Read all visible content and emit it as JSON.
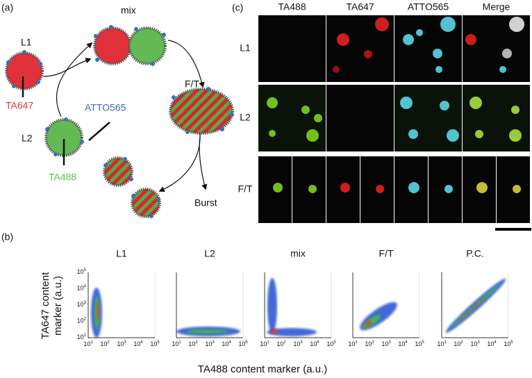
{
  "panel_labels": [
    "(a)",
    "(b)",
    "(c)"
  ],
  "diagram": {
    "nodes": {
      "l1": "L1",
      "mix": "mix",
      "ft": "F/T",
      "l2": "L2",
      "burst": "Burst"
    },
    "dyes": {
      "ta647": "TA647",
      "atto565": "ATTO565",
      "ta488": "TA488"
    }
  },
  "microscopy": {
    "columns": [
      "TA488",
      "TA647",
      "ATTO565",
      "Merge"
    ],
    "rows": [
      "L1",
      "L2",
      "F/T"
    ]
  },
  "flow_plots": {
    "titles": [
      "L1",
      "L2",
      "mix",
      "F/T",
      "P.C."
    ],
    "y_label": [
      "TA647 content",
      "marker (a.u.)"
    ],
    "x_label": "TA488 content marker (a.u.)",
    "ticks": [
      {
        "base": "10",
        "exponent": "1"
      },
      {
        "base": "10",
        "exponent": "2"
      },
      {
        "base": "10",
        "exponent": "3"
      },
      {
        "base": "10",
        "exponent": "4"
      },
      {
        "base": "10",
        "exponent": "5"
      }
    ]
  }
}
